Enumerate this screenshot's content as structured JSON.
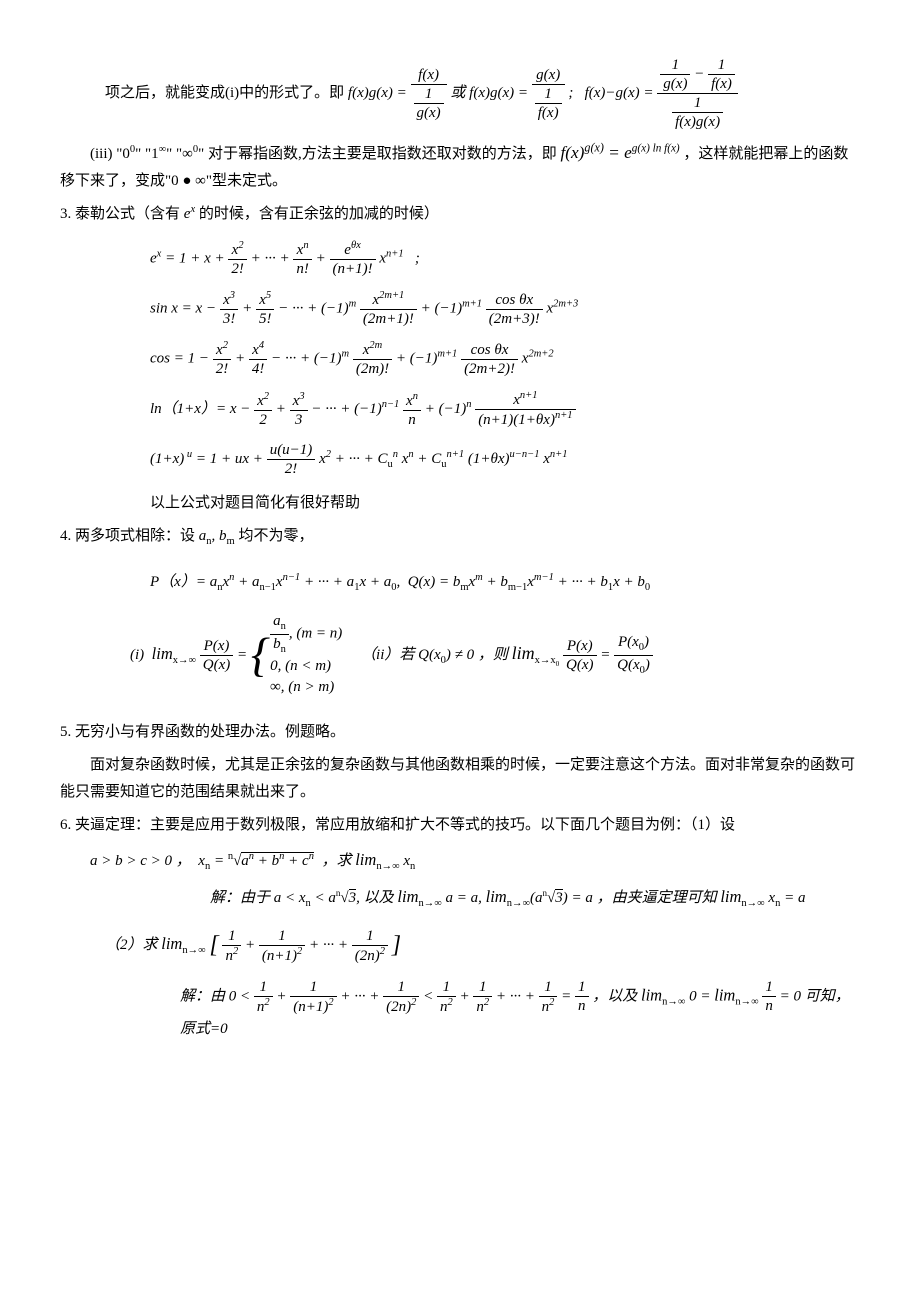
{
  "line1_pre": "项之后，就能变成(i)中的形式了。即",
  "line1_eq": "f(x)g(x) = <span class='frac'><span class='num'>f(x)</span><span class='den'><span class='frac'><span class='num'>1</span><span class='den'>g(x)</span></span></span></span> 或 f(x)g(x) = <span class='frac'><span class='num'>g(x)</span><span class='den'><span class='frac'><span class='num'>1</span><span class='den'>f(x)</span></span></span></span> ;&nbsp;&nbsp;  f(x)−g(x) = <span class='frac'><span class='num'><span class='frac'><span class='num'>1</span><span class='den'>g(x)</span></span> − <span class='frac'><span class='num'>1</span><span class='den'>f(x)</span></span></span><span class='den'><span class='frac'><span class='num'>1</span><span class='den'>f(x)g(x)</span></span></span></span>",
  "line_iii_pre": "(iii) \"0<sup>0</sup>\" \"1<sup>∞</sup>\" \"∞<sup>0</sup>\" 对于幂指函数,方法主要是取指数还取对数的方法，即",
  "line_iii_eq": "f(x)<sup>g(x)</sup> = e<sup class='small-sup'>g(x) ln f(x)</sup>",
  "line_iii_post": "，这样就能把幂上的函数移下来了，变成\"0 ● ∞\"型未定式。",
  "item3_title": "3. 泰勒公式（含有 <span class='math'>e<sup>x</sup></span> 的时候，含有正余弦的加减的时候）",
  "taylor_ex": "e<sup>x</sup> = 1 + x + <span class='frac'><span class='num'>x<sup>2</sup></span><span class='den'>2!</span></span> + ··· + <span class='frac'><span class='num'>x<sup>n</sup></span><span class='den'>n!</span></span> + <span class='frac'><span class='num'>e<sup>θx</sup></span><span class='den'>(n+1)!</span></span> x<sup>n+1</sup> &nbsp;&nbsp;;",
  "taylor_sin": "sin x = x − <span class='frac'><span class='num'>x<sup>3</sup></span><span class='den'>3!</span></span> + <span class='frac'><span class='num'>x<sup>5</sup></span><span class='den'>5!</span></span> − ··· + (−1)<sup>m</sup> <span class='frac'><span class='num'>x<sup>2m+1</sup></span><span class='den'>(2m+1)!</span></span> + (−1)<sup>m+1</sup> <span class='frac'><span class='num'>cos θx</span><span class='den'>(2m+3)!</span></span> x<sup>2m+3</sup>",
  "taylor_cos": "cos = 1 − <span class='frac'><span class='num'>x<sup>2</sup></span><span class='den'>2!</span></span> + <span class='frac'><span class='num'>x<sup>4</sup></span><span class='den'>4!</span></span> − ··· + (−1)<sup>m</sup> <span class='frac'><span class='num'>x<sup>2m</sup></span><span class='den'>(2m)!</span></span> + (−1)<sup>m+1</sup> <span class='frac'><span class='num'>cos θx</span><span class='den'>(2m+2)!</span></span> x<sup>2m+2</sup>",
  "taylor_ln": "ln（1+x）= x − <span class='frac'><span class='num'>x<sup>2</sup></span><span class='den'>2</span></span> + <span class='frac'><span class='num'>x<sup>3</sup></span><span class='den'>3</span></span> − ··· + (−1)<sup>n−1</sup> <span class='frac'><span class='num'>x<sup>n</sup></span><span class='den'>n</span></span> + (−1)<sup>n</sup> <span class='frac'><span class='num'>x<sup>n+1</sup></span><span class='den'>(n+1)(1+θx)<sup>n+1</sup></span></span>",
  "taylor_1px": "(1+x)<sup> u</sup> = 1 + ux + <span class='frac'><span class='num'>u(u−1)</span><span class='den'>2!</span></span> x<sup>2</sup> + ··· + C<sub>u</sub><sup>n</sup> x<sup>n</sup> + C<sub>u</sub><sup>n+1</sup> (1+θx)<sup>u−n−1</sup> x<sup>n+1</sup>",
  "taylor_note": "以上公式对题目简化有很好帮助",
  "item4_title": "4. 两多项式相除：设 <span class='math'>a<sub>n</sub>, b<sub>m</sub></span> 均不为零，",
  "item4_px": "P（x）= a<sub>n</sub>x<sup>n</sup> + a<sub>n−1</sub>x<sup>n−1</sup> + ··· + a<sub>1</sub>x + a<sub>0</sub>,&nbsp; Q(x) = b<sub>m</sub>x<sup>m</sup> + b<sub>m−1</sub>x<sup>m−1</sup> + ··· + b<sub>1</sub>x + b<sub>0</sub>",
  "item4_cases_i": "(i) &nbsp;<span style='font-size:1.1em'>lim</span><sub class='upright'>x→∞</sub> <span class='frac'><span class='num'>P(x)</span><span class='den'>Q(x)</span></span> = <span style='font-size:3.2em; vertical-align:middle; font-weight:100'>{</span><span style='display:inline-block; vertical-align:middle; text-align:left; line-height:1.4'><span class='frac'><span class='num'>a<sub>n</sub></span><span class='den'>b<sub>n</sub></span></span>, (m = n)<br>0, (n &lt; m)<br>∞, (n &gt; m)</span>",
  "item4_cases_ii": "（ii）若 Q(x<sub>0</sub>) ≠ 0 ，则 <span style='font-size:1.2em'>lim</span><sub class='upright'>x→x<sub>0</sub></sub> <span class='frac'><span class='num'>P(x)</span><span class='den'>Q(x)</span></span> = <span class='frac'><span class='num'>P(x<sub>0</sub>)</span><span class='den'>Q(x<sub>0</sub>)</span></span>",
  "item5_title": "5. 无穷小与有界函数的处理办法。例题略。",
  "item5_body": "面对复杂函数时候，尤其是正余弦的复杂函数与其他函数相乘的时候，一定要注意这个方法。面对非常复杂的函数可能只需要知道它的范围结果就出来了。",
  "item6_title": "6. 夹逼定理：主要是应用于数列极限，常应用放缩和扩大不等式的技巧。以下面几个题目为例：（1）设",
  "item6_setup": "a &gt; b &gt; c &gt; 0 ，&nbsp; x<sub>n</sub> = <sup class='upright' style='font-size:0.7em'>n</sup>√<span style='border-top:1px solid #000'>a<sup>n</sup> + b<sup>n</sup> + c<sup>n</sup></span> &nbsp;，求 <span style='font-size:1.1em'>lim</span><sub class='upright'>n→∞</sub> x<sub>n</sub>",
  "item6_sol1": "解：由于 a &lt; x<sub>n</sub> &lt; a<sup class='upright' style='font-size:0.6em'>n</sup>√<span style='border-top:1px solid #000'>3</span>, 以及 <span style='font-size:1.1em'>lim</span><sub class='upright'>n→∞</sub> a = a, <span style='font-size:1.1em'>lim</span><sub class='upright'>n→∞</sub>(a<sup class='upright' style='font-size:0.6em'>n</sup>√<span style='border-top:1px solid #000'>3</span>) = a ，由夹逼定理可知 <span style='font-size:1.1em'>lim</span><sub class='upright'>n→∞</sub> x<sub>n</sub> = a",
  "item6_q2": "（2）求 <span style='font-size:1.1em'>lim</span><sub class='upright'>n→∞</sub> <span style='font-size:1.6em; vertical-align:middle'>[</span> <span class='frac'><span class='num'>1</span><span class='den'>n<sup>2</sup></span></span> + <span class='frac'><span class='num'>1</span><span class='den'>(n+1)<sup>2</sup></span></span> + ··· + <span class='frac'><span class='num'>1</span><span class='den'>(2n)<sup>2</sup></span></span> <span style='font-size:1.6em; vertical-align:middle'>]</span>",
  "item6_sol2": "解：由 0 &lt; <span class='frac'><span class='num'>1</span><span class='den'>n<sup>2</sup></span></span> + <span class='frac'><span class='num'>1</span><span class='den'>(n+1)<sup>2</sup></span></span> + ··· + <span class='frac'><span class='num'>1</span><span class='den'>(2n)<sup>2</sup></span></span> &lt; <span class='frac'><span class='num'>1</span><span class='den'>n<sup>2</sup></span></span> + <span class='frac'><span class='num'>1</span><span class='den'>n<sup>2</sup></span></span> + ··· + <span class='frac'><span class='num'>1</span><span class='den'>n<sup>2</sup></span></span> = <span class='frac'><span class='num'>1</span><span class='den'>n</span></span> ，以及 <span style='font-size:1.1em'>lim</span><sub class='upright'>n→∞</sub> 0 = <span style='font-size:1.1em'>lim</span><sub class='upright'>n→∞</sub> <span class='frac'><span class='num'>1</span><span class='den'>n</span></span> = 0 可知，原式=0"
}
